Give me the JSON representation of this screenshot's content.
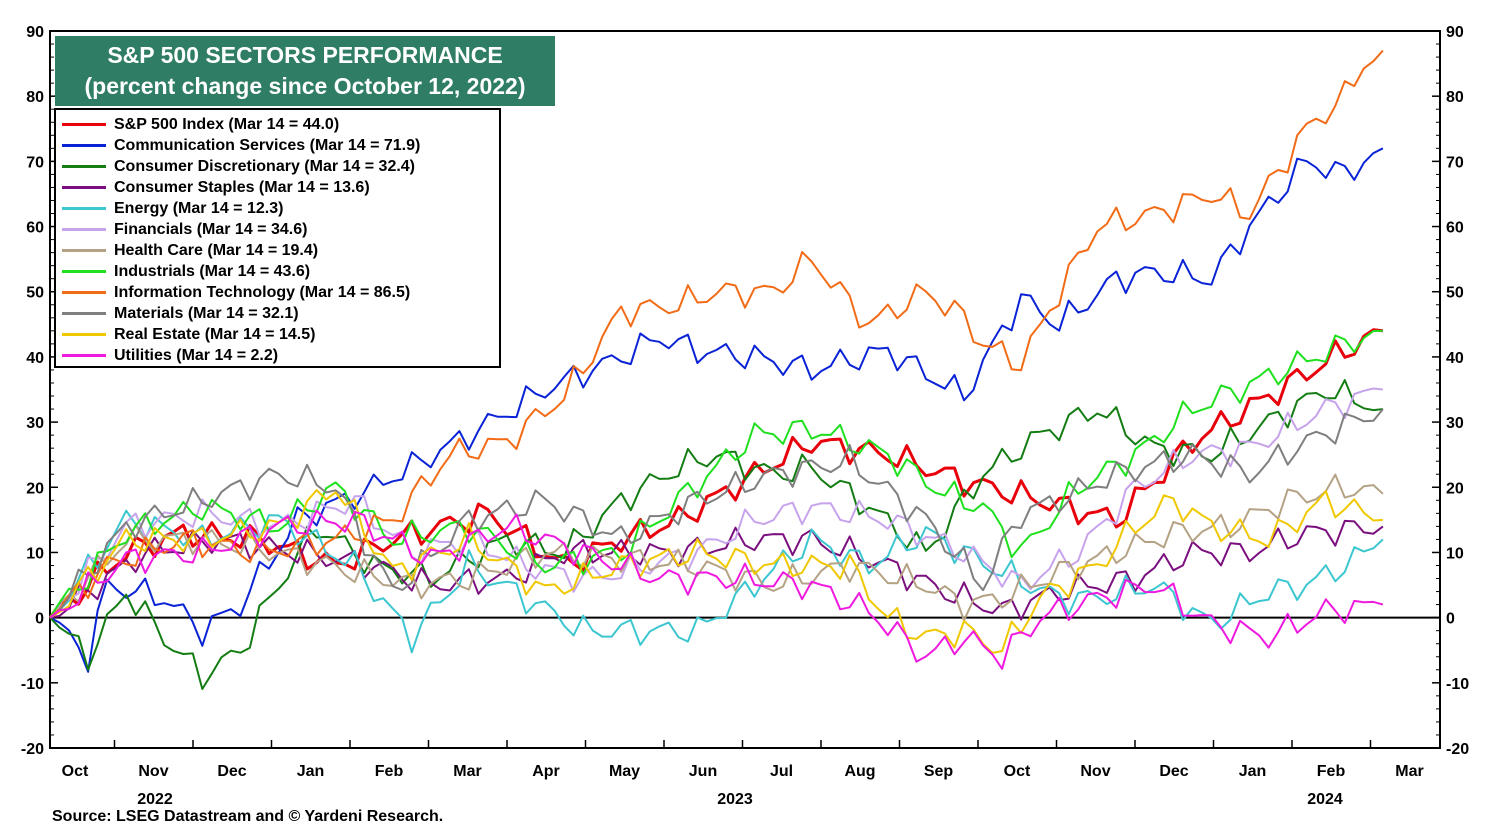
{
  "chart_data": {
    "type": "line",
    "title": "S&P 500 SECTORS PERFORMANCE",
    "subtitle": "(percent change since October 12, 2022)",
    "ylim": [
      -20,
      90
    ],
    "yticks": [
      -20,
      -10,
      0,
      10,
      20,
      30,
      40,
      50,
      60,
      70,
      80,
      90
    ],
    "ytick_labels": [
      "-20",
      "-10",
      "0",
      "10",
      "20",
      "30",
      "40",
      "50",
      "60",
      "70",
      "80",
      "90"
    ],
    "months": [
      "Oct",
      "Nov",
      "Dec",
      "Jan",
      "Feb",
      "Mar",
      "Apr",
      "May",
      "Jun",
      "Jul",
      "Aug",
      "Sep",
      "Oct",
      "Nov",
      "Dec",
      "Jan",
      "Feb",
      "Mar"
    ],
    "years": [
      "2022",
      "2023",
      "2024"
    ],
    "x_start": "2022-10-12",
    "x_end": "2024-03-14",
    "series": [
      {
        "name": "S&P 500 Index",
        "legend": "S&P 500 Index (Mar 14 = 44.0)",
        "color": "#e8000b",
        "x": [
          0,
          4,
          7,
          11,
          15,
          18,
          23,
          27,
          30,
          33,
          37,
          40,
          44,
          48,
          52,
          56,
          60,
          64,
          68,
          70
        ],
        "y": [
          0,
          10,
          13,
          12,
          8,
          12,
          16,
          8,
          12,
          15,
          22,
          27,
          25,
          21,
          18,
          15,
          27,
          34,
          41,
          44
        ]
      },
      {
        "name": "Communication Services",
        "legend": "Communication Services (Mar 14 = 71.9)",
        "color": "#0a23d6",
        "x": [
          0,
          2,
          3,
          6,
          8,
          10,
          13,
          17,
          22,
          26,
          30,
          32,
          34,
          37,
          40,
          44,
          48,
          51,
          53,
          56,
          58,
          61,
          63,
          66,
          68,
          70
        ],
        "y": [
          0,
          -6,
          5,
          3,
          -2,
          2,
          15,
          20,
          28,
          35,
          40,
          43,
          41,
          40,
          38,
          41,
          34,
          49,
          45,
          52,
          53,
          52,
          60,
          70,
          68,
          72
        ]
      },
      {
        "name": "Consumer Discretionary",
        "legend": "Consumer Discretionary (Mar 14 = 32.4)",
        "color": "#137d13",
        "x": [
          0,
          2,
          4,
          6,
          8,
          10,
          12,
          14,
          17,
          20,
          24,
          27,
          30,
          33,
          35,
          38,
          40,
          43,
          46,
          49,
          52,
          55,
          58,
          61,
          64,
          67,
          70
        ],
        "y": [
          0,
          -6,
          4,
          -3,
          -9,
          -5,
          5,
          14,
          8,
          6,
          12,
          10,
          18,
          23,
          25,
          22,
          23,
          17,
          10,
          22,
          28,
          32,
          26,
          25,
          30,
          35,
          32
        ]
      },
      {
        "name": "Consumer Staples",
        "legend": "Consumer Staples (Mar 14 = 13.6)",
        "color": "#7b0f7f",
        "x": [
          0,
          5,
          9,
          13,
          17,
          20,
          24,
          27,
          30,
          33,
          37,
          40,
          44,
          47,
          50,
          53,
          57,
          60,
          63,
          66,
          70
        ],
        "y": [
          0,
          10,
          12,
          10,
          8,
          5,
          6,
          10,
          10,
          10,
          12,
          12,
          8,
          4,
          1,
          4,
          6,
          10,
          10,
          13,
          14
        ]
      },
      {
        "name": "Energy",
        "legend": "Energy (Mar 14 = 12.3)",
        "color": "#3cc6d0",
        "x": [
          0,
          4,
          8,
          12,
          16,
          19,
          22,
          25,
          28,
          31,
          34,
          37,
          40,
          43,
          46,
          48,
          50,
          53,
          55,
          58,
          61,
          64,
          66,
          68,
          70
        ],
        "y": [
          0,
          15,
          12,
          15,
          8,
          -3,
          8,
          3,
          -2,
          -2,
          -2,
          5,
          12,
          8,
          13,
          10,
          7,
          3,
          3,
          5,
          -1,
          4,
          5,
          8,
          12
        ]
      },
      {
        "name": "Financials",
        "legend": "Financials (Mar 14 = 34.6)",
        "color": "#c7a3ec",
        "x": [
          0,
          4,
          8,
          12,
          16,
          19,
          22,
          25,
          28,
          30,
          34,
          37,
          40,
          44,
          48,
          51,
          54,
          57,
          60,
          63,
          67,
          70
        ],
        "y": [
          0,
          14,
          16,
          14,
          18,
          10,
          12,
          8,
          6,
          7,
          10,
          15,
          17,
          15,
          10,
          5,
          10,
          20,
          25,
          26,
          32,
          35
        ]
      },
      {
        "name": "Health Care",
        "legend": "Health Care (Mar 14 = 19.4)",
        "color": "#b5a285",
        "x": [
          0,
          4,
          8,
          12,
          16,
          19,
          22,
          26,
          30,
          34,
          38,
          42,
          46,
          48,
          50,
          53,
          56,
          59,
          62,
          65,
          68,
          70
        ],
        "y": [
          0,
          12,
          12,
          10,
          7,
          5,
          6,
          10,
          9,
          8,
          5,
          8,
          5,
          2,
          3,
          7,
          10,
          13,
          14,
          18,
          20,
          19
        ]
      },
      {
        "name": "Industrials",
        "legend": "Industrials (Mar 14 = 43.6)",
        "color": "#1fe01f",
        "x": [
          0,
          4,
          8,
          12,
          15,
          18,
          22,
          26,
          30,
          33,
          37,
          40,
          44,
          47,
          49,
          51,
          54,
          57,
          60,
          64,
          68,
          70
        ],
        "y": [
          0,
          13,
          17,
          14,
          20,
          12,
          14,
          8,
          10,
          18,
          28,
          29,
          25,
          19,
          17,
          10,
          20,
          25,
          32,
          37,
          42,
          44
        ]
      },
      {
        "name": "Information Technology",
        "legend": "Information Technology (Mar 14 = 86.5)",
        "color": "#f26c17",
        "x": [
          0,
          3,
          7,
          11,
          15,
          18,
          21,
          24,
          27,
          30,
          33,
          35,
          38,
          40,
          43,
          46,
          48,
          49,
          51,
          53,
          55,
          58,
          61,
          63,
          66,
          68,
          69,
          70
        ],
        "y": [
          0,
          8,
          12,
          10,
          12,
          15,
          25,
          27,
          34,
          47,
          48,
          50,
          50,
          55,
          45,
          50,
          46,
          42,
          39,
          50,
          60,
          62,
          65,
          62,
          75,
          80,
          85,
          87
        ]
      },
      {
        "name": "Materials",
        "legend": "Materials (Mar 14 = 32.1)",
        "color": "#7f7f7f",
        "x": [
          0,
          4,
          8,
          12,
          15,
          18,
          22,
          26,
          30,
          34,
          38,
          42,
          46,
          49,
          51,
          53,
          56,
          60,
          63,
          66,
          70
        ],
        "y": [
          0,
          14,
          18,
          22,
          20,
          4,
          15,
          18,
          12,
          18,
          22,
          24,
          15,
          5,
          16,
          18,
          22,
          25,
          22,
          27,
          32
        ]
      },
      {
        "name": "Real Estate",
        "legend": "Real Estate (Mar 14 = 14.5)",
        "color": "#f0c800",
        "x": [
          0,
          4,
          8,
          12,
          15,
          18,
          22,
          26,
          30,
          34,
          38,
          42,
          44,
          46,
          48,
          50,
          52,
          55,
          57,
          59,
          61,
          64,
          67,
          70
        ],
        "y": [
          0,
          12,
          12,
          14,
          20,
          7,
          12,
          4,
          8,
          10,
          8,
          8,
          0,
          -3,
          -2,
          -5,
          3,
          8,
          14,
          18,
          14,
          12,
          18,
          15
        ]
      },
      {
        "name": "Utilities",
        "legend": "Utilities (Mar 14 = 2.2)",
        "color": "#f019e0",
        "x": [
          0,
          4,
          8,
          12,
          16,
          20,
          24,
          28,
          32,
          36,
          40,
          43,
          46,
          48,
          50,
          52,
          55,
          58,
          61,
          64,
          67,
          70
        ],
        "y": [
          0,
          9,
          10,
          14,
          15,
          9,
          14,
          10,
          6,
          6,
          5,
          1,
          -6,
          -3,
          -6,
          0,
          3,
          5,
          -1,
          -3,
          1,
          2
        ]
      }
    ]
  },
  "source": "Source: LSEG Datastream and © Yardeni Research."
}
